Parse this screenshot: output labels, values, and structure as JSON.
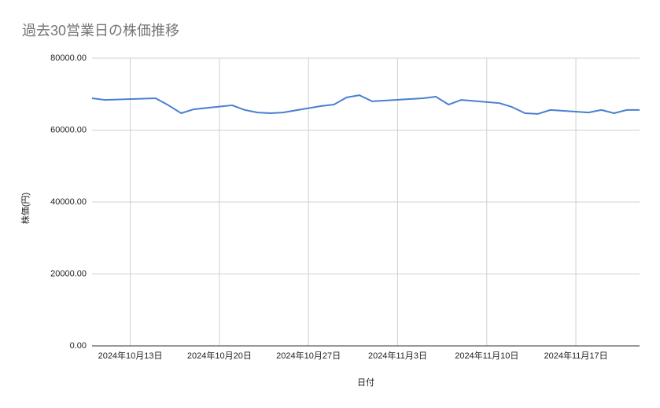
{
  "chart_data": {
    "type": "line",
    "title": "過去30営業日の株価推移",
    "x_label": "日付",
    "y_label": "株価(円)",
    "x": [
      "2024-10-10",
      "2024-10-11",
      "2024-10-15",
      "2024-10-16",
      "2024-10-17",
      "2024-10-18",
      "2024-10-21",
      "2024-10-22",
      "2024-10-23",
      "2024-10-24",
      "2024-10-25",
      "2024-10-28",
      "2024-10-29",
      "2024-10-30",
      "2024-10-31",
      "2024-11-01",
      "2024-11-05",
      "2024-11-06",
      "2024-11-07",
      "2024-11-08",
      "2024-11-11",
      "2024-11-12",
      "2024-11-13",
      "2024-11-14",
      "2024-11-15",
      "2024-11-18",
      "2024-11-19",
      "2024-11-20",
      "2024-11-21",
      "2024-11-22"
    ],
    "series": [
      {
        "name": "株価",
        "color": "#4a7fd0",
        "values": [
          68850,
          68400,
          68850,
          66900,
          64700,
          65800,
          66900,
          65600,
          64900,
          64700,
          64900,
          66700,
          67100,
          69100,
          69700,
          68000,
          68850,
          69300,
          67100,
          68400,
          67500,
          66400,
          64700,
          64500,
          65600,
          64900,
          65600,
          64700,
          65600,
          65600
        ]
      }
    ],
    "xlim": [
      "2024-10-10",
      "2024-11-22"
    ],
    "xticks": [
      {
        "value": "2024-10-13",
        "label": "2024年10月13日"
      },
      {
        "value": "2024-10-20",
        "label": "2024年10月20日"
      },
      {
        "value": "2024-10-27",
        "label": "2024年10月27日"
      },
      {
        "value": "2024-11-03",
        "label": "2024年11月3日"
      },
      {
        "value": "2024-11-10",
        "label": "2024年11月10日"
      },
      {
        "value": "2024-11-17",
        "label": "2024年11月17日"
      }
    ],
    "ylim": [
      0,
      80000
    ],
    "yticks": [
      {
        "value": 0,
        "label": "0.00"
      },
      {
        "value": 20000,
        "label": "20000.00"
      },
      {
        "value": 40000,
        "label": "40000.00"
      },
      {
        "value": 60000,
        "label": "60000.00"
      },
      {
        "value": 80000,
        "label": "80000.00"
      }
    ],
    "grid": true
  }
}
